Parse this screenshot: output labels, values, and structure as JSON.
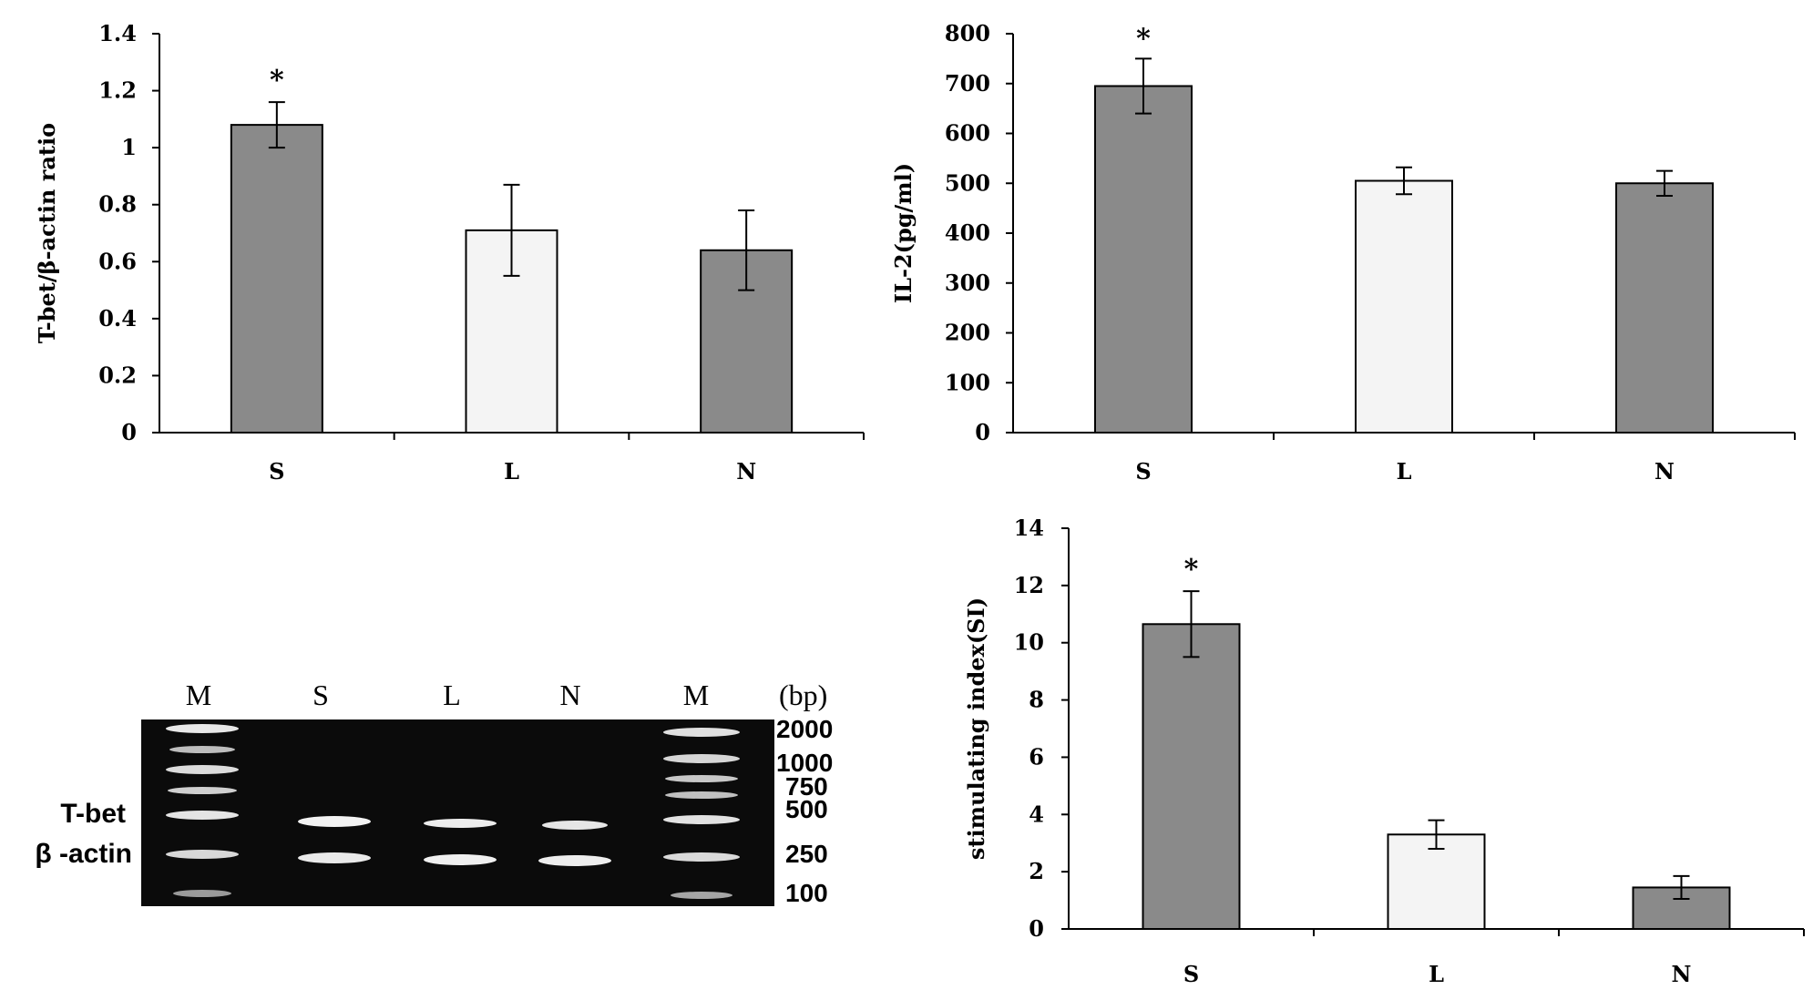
{
  "colors": {
    "dark_bar": "#8a8a8a",
    "light_bar": "#f4f4f4",
    "axis": "#000000",
    "gel_bg": "#0b0b0b"
  },
  "chart_data": [
    {
      "type": "bar",
      "categories": [
        "S",
        "L",
        "N"
      ],
      "values": [
        1.08,
        0.71,
        0.64
      ],
      "errors": [
        0.08,
        0.16,
        0.14
      ],
      "bar_colors": [
        "dark",
        "light",
        "dark"
      ],
      "significance": [
        "*",
        "",
        ""
      ],
      "yticks": [
        "0",
        "0.2",
        "0.4",
        "0.6",
        "0.8",
        "1",
        "1.2",
        "1.4"
      ],
      "ylim": [
        0,
        1.4
      ],
      "ylabel": "T-bet/β-actin ratio",
      "xlabel": "",
      "title": ""
    },
    {
      "type": "bar",
      "categories": [
        "S",
        "L",
        "N"
      ],
      "values": [
        695,
        505,
        500
      ],
      "errors": [
        55,
        27,
        25
      ],
      "bar_colors": [
        "dark",
        "light",
        "dark"
      ],
      "significance": [
        "*",
        "",
        ""
      ],
      "yticks": [
        "0",
        "100",
        "200",
        "300",
        "400",
        "500",
        "600",
        "700",
        "800"
      ],
      "ylim": [
        0,
        800
      ],
      "ylabel": "IL-2(pg/ml)",
      "xlabel": "",
      "title": ""
    },
    {
      "type": "bar",
      "categories": [
        "S",
        "L",
        "N"
      ],
      "values": [
        10.65,
        3.3,
        1.45
      ],
      "errors": [
        1.15,
        0.5,
        0.4
      ],
      "bar_colors": [
        "dark",
        "light",
        "dark"
      ],
      "significance": [
        "*",
        "",
        ""
      ],
      "yticks": [
        "0",
        "2",
        "4",
        "6",
        "8",
        "10",
        "12",
        "14"
      ],
      "ylim": [
        0,
        14
      ],
      "ylabel": "stimulating index(SI)",
      "xlabel": "",
      "title": ""
    }
  ],
  "gel": {
    "lanes": [
      "M",
      "S",
      "L",
      "N",
      "M"
    ],
    "unit": "(bp)",
    "marker_sizes": [
      "2000",
      "1000",
      "750",
      "500",
      "250",
      "100"
    ],
    "row_labels": [
      "T-bet",
      "β -actin"
    ]
  }
}
